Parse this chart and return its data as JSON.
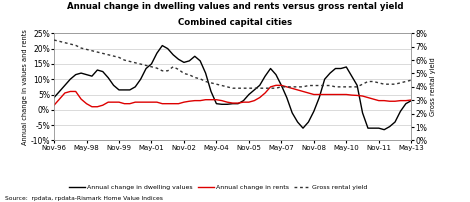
{
  "title_line1": "Annual change in dwelling values and rents versus gross rental yield",
  "title_line2": "Combined capital cities",
  "ylabel_left": "Annual change in values and rents",
  "ylabel_right": "Gross rental yield",
  "source": "Source:  rpdata, rpdata-Rismark Home Value Indices",
  "ylim_left": [
    -0.1,
    0.25
  ],
  "ylim_right": [
    0.0,
    0.08
  ],
  "yticks_left": [
    -0.1,
    -0.05,
    0.0,
    0.05,
    0.1,
    0.15,
    0.2,
    0.25
  ],
  "yticks_right": [
    0.0,
    0.01,
    0.02,
    0.03,
    0.04,
    0.05,
    0.06,
    0.07,
    0.08
  ],
  "xtick_labels": [
    "Nov-96",
    "May-98",
    "Nov-99",
    "May-01",
    "Nov-02",
    "May-04",
    "Nov-05",
    "May-07",
    "Nov-08",
    "May-10",
    "Nov-11",
    "May-13"
  ],
  "xtick_positions": [
    0,
    18,
    36,
    54,
    72,
    90,
    108,
    126,
    144,
    162,
    180,
    198
  ],
  "color_dwelling": "#000000",
  "color_rents": "#dd0000",
  "color_yield": "#333333",
  "bg_color": "#ffffff",
  "grid_color": "#cccccc",
  "dwelling_x": [
    0,
    3,
    6,
    9,
    12,
    15,
    18,
    21,
    24,
    27,
    30,
    33,
    36,
    39,
    42,
    45,
    48,
    51,
    54,
    57,
    60,
    63,
    66,
    69,
    72,
    75,
    78,
    81,
    84,
    87,
    90,
    93,
    96,
    99,
    102,
    105,
    108,
    111,
    114,
    117,
    120,
    123,
    126,
    129,
    132,
    135,
    138,
    141,
    144,
    147,
    150,
    153,
    156,
    159,
    162,
    165,
    168,
    171,
    174,
    177,
    180,
    183,
    186,
    189,
    192,
    195,
    198
  ],
  "dwelling_y": [
    0.04,
    0.06,
    0.08,
    0.1,
    0.115,
    0.12,
    0.115,
    0.11,
    0.13,
    0.125,
    0.105,
    0.08,
    0.065,
    0.065,
    0.065,
    0.075,
    0.1,
    0.135,
    0.15,
    0.185,
    0.21,
    0.2,
    0.18,
    0.165,
    0.155,
    0.16,
    0.175,
    0.16,
    0.12,
    0.06,
    0.02,
    0.018,
    0.018,
    0.02,
    0.02,
    0.03,
    0.05,
    0.065,
    0.08,
    0.11,
    0.135,
    0.115,
    0.08,
    0.04,
    -0.01,
    -0.04,
    -0.06,
    -0.04,
    -0.005,
    0.04,
    0.1,
    0.12,
    0.135,
    0.135,
    0.14,
    0.11,
    0.08,
    -0.01,
    -0.06,
    -0.06,
    -0.06,
    -0.065,
    -0.055,
    -0.04,
    -0.005,
    0.02,
    0.03
  ],
  "rents_x": [
    0,
    3,
    6,
    9,
    12,
    15,
    18,
    21,
    24,
    27,
    30,
    33,
    36,
    39,
    42,
    45,
    48,
    51,
    54,
    57,
    60,
    63,
    66,
    69,
    72,
    75,
    78,
    81,
    84,
    87,
    90,
    93,
    96,
    99,
    102,
    105,
    108,
    111,
    114,
    117,
    120,
    123,
    126,
    129,
    132,
    135,
    138,
    141,
    144,
    147,
    150,
    153,
    156,
    159,
    162,
    165,
    168,
    171,
    174,
    177,
    180,
    183,
    186,
    189,
    192,
    195,
    198
  ],
  "rents_y": [
    0.015,
    0.035,
    0.055,
    0.06,
    0.06,
    0.035,
    0.02,
    0.01,
    0.01,
    0.015,
    0.025,
    0.025,
    0.025,
    0.02,
    0.02,
    0.025,
    0.025,
    0.025,
    0.025,
    0.025,
    0.02,
    0.02,
    0.02,
    0.02,
    0.025,
    0.028,
    0.03,
    0.03,
    0.033,
    0.033,
    0.033,
    0.03,
    0.025,
    0.022,
    0.022,
    0.025,
    0.025,
    0.03,
    0.04,
    0.055,
    0.075,
    0.08,
    0.08,
    0.075,
    0.07,
    0.065,
    0.06,
    0.055,
    0.05,
    0.05,
    0.05,
    0.05,
    0.05,
    0.05,
    0.05,
    0.048,
    0.047,
    0.045,
    0.04,
    0.035,
    0.03,
    0.03,
    0.028,
    0.028,
    0.03,
    0.03,
    0.032
  ],
  "yield_x": [
    0,
    3,
    6,
    9,
    12,
    15,
    18,
    21,
    24,
    27,
    30,
    33,
    36,
    39,
    42,
    45,
    48,
    51,
    54,
    57,
    60,
    63,
    66,
    69,
    72,
    75,
    78,
    81,
    84,
    87,
    90,
    93,
    96,
    99,
    102,
    105,
    108,
    111,
    114,
    117,
    120,
    123,
    126,
    129,
    132,
    135,
    138,
    141,
    144,
    147,
    150,
    153,
    156,
    159,
    162,
    165,
    168,
    171,
    174,
    177,
    180,
    183,
    186,
    189,
    192,
    195,
    198
  ],
  "yield_y": [
    0.075,
    0.074,
    0.073,
    0.072,
    0.071,
    0.069,
    0.068,
    0.067,
    0.066,
    0.065,
    0.064,
    0.063,
    0.062,
    0.06,
    0.059,
    0.058,
    0.057,
    0.056,
    0.055,
    0.054,
    0.052,
    0.052,
    0.055,
    0.053,
    0.05,
    0.049,
    0.047,
    0.046,
    0.044,
    0.043,
    0.042,
    0.041,
    0.04,
    0.039,
    0.039,
    0.039,
    0.039,
    0.039,
    0.039,
    0.039,
    0.039,
    0.039,
    0.04,
    0.04,
    0.04,
    0.04,
    0.04,
    0.041,
    0.041,
    0.041,
    0.041,
    0.041,
    0.04,
    0.04,
    0.04,
    0.04,
    0.04,
    0.042,
    0.044,
    0.044,
    0.043,
    0.042,
    0.042,
    0.042,
    0.043,
    0.044,
    0.045
  ]
}
